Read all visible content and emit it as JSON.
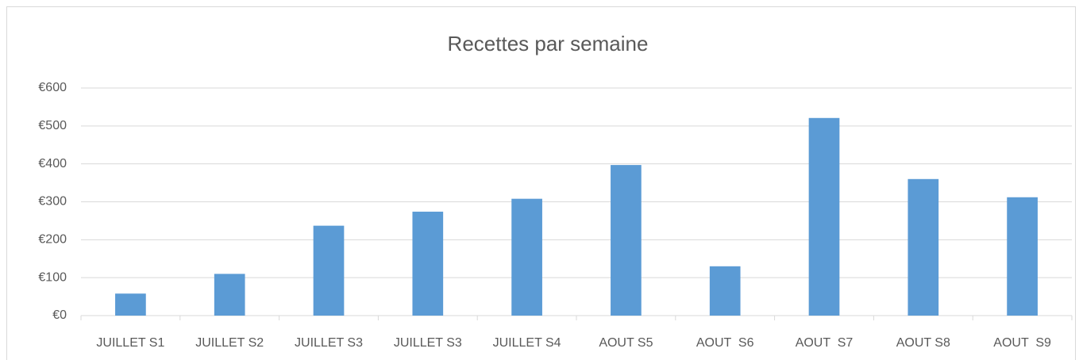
{
  "chart_data": {
    "type": "bar",
    "title": "Recettes par semaine",
    "categories": [
      "JUILLET S1",
      "JUILLET S2",
      "JUILLET S3",
      "JUILLET S3",
      "JUILLET S4",
      "AOUT S5",
      "AOUT  S6",
      "AOUT  S7",
      "AOUT S8",
      "AOUT  S9"
    ],
    "values": [
      58,
      110,
      237,
      274,
      308,
      397,
      130,
      521,
      360,
      312
    ],
    "color": "#5b9bd5",
    "ylim": [
      0,
      600
    ],
    "yticks": [
      {
        "value": 0,
        "label": "€0"
      },
      {
        "value": 100,
        "label": "€100"
      },
      {
        "value": 200,
        "label": "€200"
      },
      {
        "value": 300,
        "label": "€300"
      },
      {
        "value": 400,
        "label": "€400"
      },
      {
        "value": 500,
        "label": "€500"
      },
      {
        "value": 600,
        "label": "€600"
      }
    ],
    "grid": true
  }
}
